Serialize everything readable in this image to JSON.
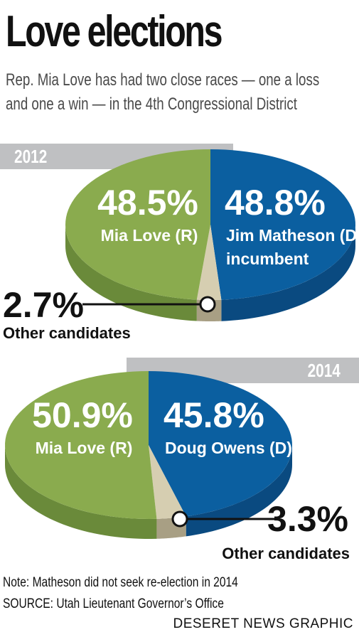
{
  "title": "Love elections",
  "subtitle": "Rep. Mia Love has had two close races — one a loss and one a win — in the 4th Congressional District",
  "chart_data": [
    {
      "type": "pie",
      "title": "2012",
      "categories": [
        "Mia Love (R)",
        "Jim Matheson (D), incumbent",
        "Other candidates"
      ],
      "values": [
        48.5,
        48.8,
        2.7
      ],
      "labels": [
        "48.5%",
        "48.8%",
        "2.7%"
      ],
      "colors": [
        "#8aab4e",
        "#0b5fa0",
        "#d6ceb1"
      ]
    },
    {
      "type": "pie",
      "title": "2014",
      "categories": [
        "Mia Love (R)",
        "Doug Owens (D)",
        "Other candidates"
      ],
      "values": [
        50.9,
        45.8,
        3.3
      ],
      "labels": [
        "50.9%",
        "45.8%",
        "3.3%"
      ],
      "colors": [
        "#8aab4e",
        "#0b5fa0",
        "#d6ceb1"
      ]
    }
  ],
  "pie2012": {
    "love_pct": "48.5%",
    "love_name": "Mia Love (R)",
    "opp_pct": "48.8%",
    "opp_name_1": "Jim Matheson (D),",
    "opp_name_2": "incumbent",
    "other_pct": "2.7%",
    "other_label": "Other candidates"
  },
  "pie2014": {
    "love_pct": "50.9%",
    "love_name": "Mia Love (R)",
    "opp_pct": "45.8%",
    "opp_name": "Doug Owens (D)",
    "other_pct": "3.3%",
    "other_label": "Other candidates"
  },
  "note": "Note: Matheson did not seek re-election in 2014",
  "source": "SOURCE: Utah Lieutenant Governor’s Office",
  "credit": "DESERET NEWS GRAPHIC",
  "colors": {
    "republican": "#8aab4e",
    "republican_dark": "#6a8a3a",
    "democrat": "#0b5fa0",
    "democrat_dark": "#0a4a80",
    "other": "#d6ceb1",
    "other_dark": "#a89f84",
    "year_bar": "#bfc0c2"
  }
}
